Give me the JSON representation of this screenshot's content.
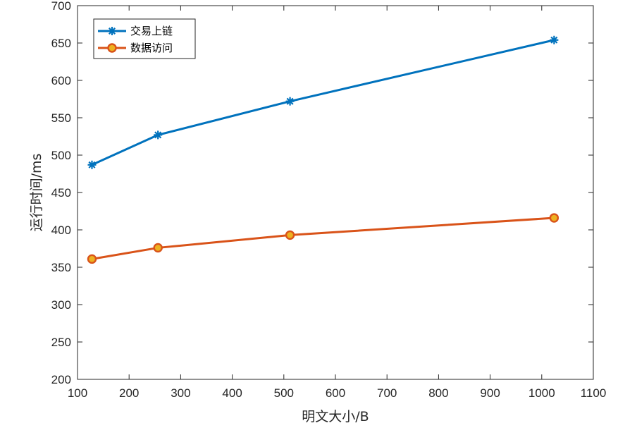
{
  "chart_data": {
    "type": "line",
    "xlabel": "明文大小/B",
    "ylabel": "运行时间/ms",
    "xlim": [
      100,
      1100
    ],
    "ylim": [
      200,
      700
    ],
    "xticks": [
      "100",
      "200",
      "300",
      "400",
      "500",
      "600",
      "700",
      "800",
      "900",
      "1000",
      "1100"
    ],
    "yticks": [
      "200",
      "250",
      "300",
      "350",
      "400",
      "450",
      "500",
      "550",
      "600",
      "650",
      "700"
    ],
    "grid": false,
    "legend_position": "top-left",
    "series": [
      {
        "name": "交易上链",
        "color": "#0072BD",
        "marker": "asterisk",
        "x": [
          128,
          256,
          512,
          1024
        ],
        "y": [
          487,
          527,
          572,
          654
        ]
      },
      {
        "name": "数据访问",
        "color": "#D95319",
        "marker": "circle",
        "marker_fill": "#EDB120",
        "x": [
          128,
          256,
          512,
          1024
        ],
        "y": [
          361,
          376,
          393,
          416
        ]
      }
    ]
  }
}
